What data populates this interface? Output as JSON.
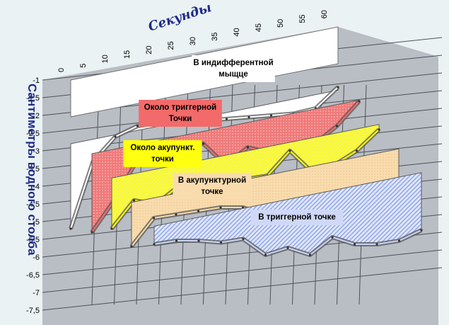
{
  "chart_data": {
    "type": "area",
    "title": "",
    "xlabel": "Секунды",
    "ylabel": "Сантиметры водного столба",
    "x": [
      0,
      5,
      10,
      15,
      20,
      25,
      30,
      35,
      40,
      45,
      50,
      55,
      60
    ],
    "x_ticks": [
      "0",
      "5",
      "10",
      "15",
      "20",
      "25",
      "30",
      "35",
      "40",
      "45",
      "50",
      "55",
      "60"
    ],
    "y_ticks": [
      "-1",
      "-1,5",
      "-2",
      "-2,5",
      "-3",
      "-3,5",
      "-4",
      "-4,5",
      "-5",
      "-5,5",
      "-6",
      "-6,5",
      "-7",
      "-7,5"
    ],
    "ylim": [
      -7.5,
      -1
    ],
    "grid": true,
    "series": [
      {
        "name": "В индифферентной мыщце",
        "label_lines": [
          "В индифферентной",
          "мыщце"
        ],
        "color": "#ffffff",
        "values": [
          -5.2,
          -3.3,
          -2.6,
          -2.3,
          -2.2,
          -2.15,
          -2.15,
          -2.1,
          -2.05,
          -2.0,
          -1.95,
          -1.8,
          -1.2
        ]
      },
      {
        "name": "Около триггерной Точки",
        "label_lines": [
          "Около триггерной",
          "Точки"
        ],
        "color": "#f26a6a",
        "values": [
          -5.2,
          -4.3,
          -3.2,
          -2.8,
          -2.75,
          -2.7,
          -3.3,
          -2.8,
          -2.95,
          -2.8,
          -2.7,
          -2.2,
          -1.5
        ]
      },
      {
        "name": "Около акупункт. точки",
        "label_lines": [
          "Около акупункт.",
          "точки"
        ],
        "color": "#ffff00",
        "values": [
          -5.0,
          -4.2,
          -4.3,
          -3.8,
          -3.75,
          -3.7,
          -3.6,
          -3.5,
          -2.8,
          -3.4,
          -3.2,
          -2.8,
          -2.2
        ]
      },
      {
        "name": "В акупунктурной точке",
        "label_lines": [
          "В акупунктурной",
          "точке"
        ],
        "color": "#f7d9a8",
        "values": [
          -5.4,
          -4.6,
          -4.5,
          -4.4,
          -4.3,
          -4.3,
          -4.5,
          -4.8,
          -4.0,
          -4.2,
          -4.3,
          -4.4,
          -4.1
        ]
      },
      {
        "name": "В триггерной точке",
        "label_lines": [
          "В триггерной точке"
        ],
        "color": "#c9d4f6",
        "values": [
          -5.2,
          -5.1,
          -5.1,
          -5.15,
          -5.05,
          -5.5,
          -5.3,
          -5.5,
          -5.0,
          -5.2,
          -5.2,
          -5.1,
          -4.8
        ]
      }
    ]
  }
}
